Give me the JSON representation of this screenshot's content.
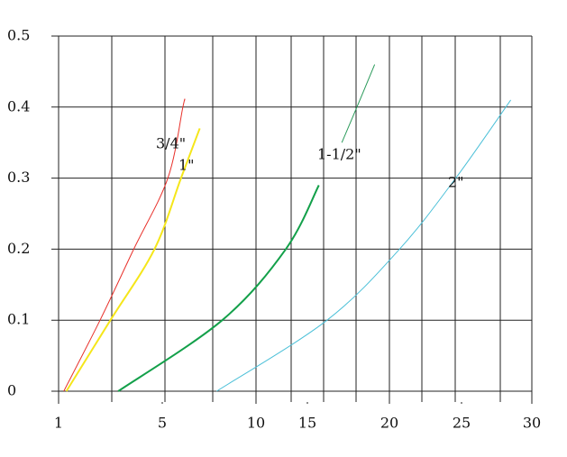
{
  "chart_data": {
    "type": "line",
    "xticks": [
      1,
      5,
      10,
      15,
      20,
      25,
      30
    ],
    "ylim": [
      0,
      0.5
    ],
    "yticks": [
      0,
      0.1,
      0.2,
      0.3,
      0.4,
      0.5
    ],
    "xlim": [
      1,
      30
    ],
    "grid": true,
    "series": [
      {
        "name": "3/4\"",
        "color": "#e8302a",
        "width": 1,
        "x": [
          1.2,
          2.6,
          3.9,
          5.3,
          6.1,
          6.2
        ],
        "values": [
          0,
          0.1,
          0.2,
          0.3,
          0.4,
          0.41
        ]
      },
      {
        "name": "1\"",
        "color": "#f5e61a",
        "width": 2,
        "x": [
          1.3,
          3.0,
          4.7,
          6.0,
          7.0
        ],
        "values": [
          0,
          0.1,
          0.2,
          0.3,
          0.37
        ]
      },
      {
        "name": "",
        "color": "#13a04a",
        "width": 2,
        "x": [
          3.3,
          8.2,
          12.9,
          15.7
        ],
        "values": [
          0,
          0.1,
          0.2,
          0.29
        ]
      },
      {
        "name": "1-1/2\"",
        "color": "#2a9a5a",
        "width": 1,
        "x": [
          17.1,
          18.2,
          19.1
        ],
        "values": [
          0.35,
          0.41,
          0.46
        ]
      },
      {
        "name": "2\"",
        "color": "#4cc0d8",
        "width": 1,
        "x": [
          7.9,
          16.2,
          20.7,
          24.6,
          28.5
        ],
        "values": [
          0,
          0.1,
          0.2,
          0.3,
          0.41
        ]
      }
    ]
  }
}
